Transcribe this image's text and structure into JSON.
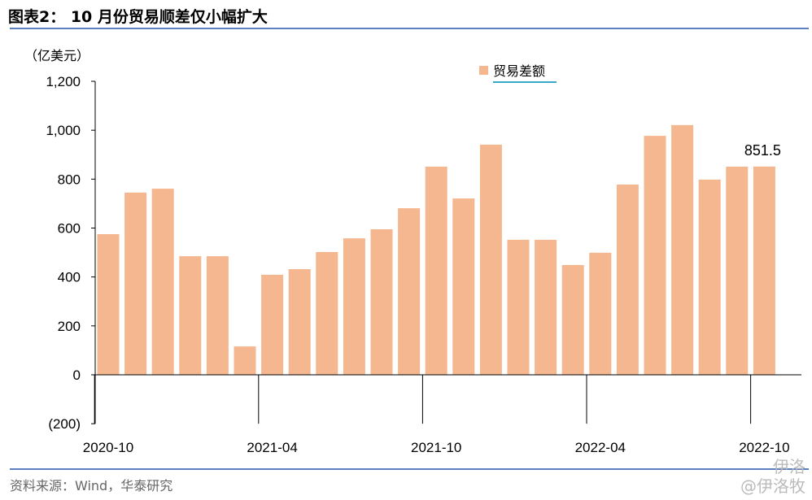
{
  "header": {
    "title": "图表2： 10 月份贸易顺差仅小幅扩大"
  },
  "footer": {
    "source": "资料来源：Wind，华泰研究"
  },
  "watermark": [
    "伊洛",
    "@伊洛牧"
  ],
  "chart_data": {
    "type": "bar",
    "title": "",
    "ylabel": "（亿美元）",
    "ylim": [
      -200,
      1200
    ],
    "yticks": [
      "(200)",
      "0",
      "200",
      "400",
      "600",
      "800",
      "1,000",
      "1,200"
    ],
    "ytick_values": [
      -200,
      0,
      200,
      400,
      600,
      800,
      1000,
      1200
    ],
    "xtick_labels": [
      "2020-10",
      "2021-04",
      "2021-10",
      "2022-04",
      "2022-10"
    ],
    "categories": [
      "2020-10",
      "2020-11",
      "2020-12",
      "2021-01",
      "2021-02",
      "2021-03",
      "2021-04",
      "2021-05",
      "2021-06",
      "2021-07",
      "2021-08",
      "2021-09",
      "2021-10",
      "2021-11",
      "2021-12",
      "2022-01",
      "2022-02",
      "2022-03",
      "2022-04",
      "2022-05",
      "2022-06",
      "2022-07",
      "2022-08",
      "2022-09",
      "2022-10"
    ],
    "series": [
      {
        "name": "贸易差额",
        "color": "#F5B78F",
        "values": [
          575,
          745,
          761,
          485,
          485,
          116,
          409,
          432,
          502,
          558,
          595,
          681,
          851,
          721,
          941,
          552,
          552,
          449,
          499,
          778,
          977,
          1021,
          798,
          851,
          851.5
        ]
      }
    ],
    "annotations": [
      {
        "category": "2022-10",
        "text": "851.5"
      }
    ],
    "legend": "top-center",
    "grid": false
  }
}
